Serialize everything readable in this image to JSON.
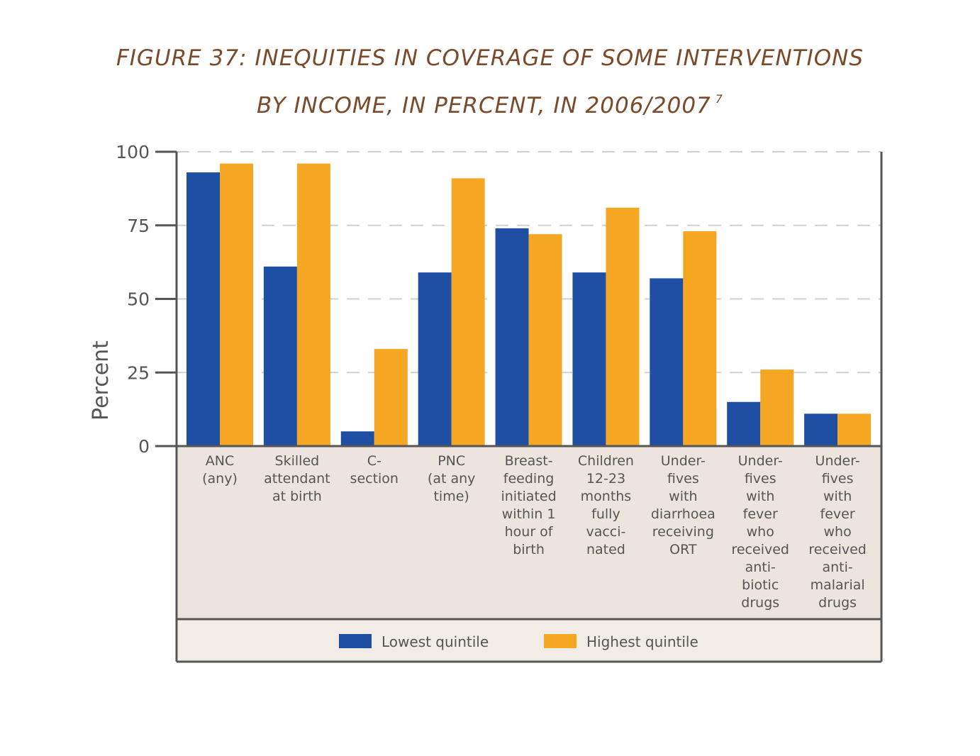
{
  "title": {
    "line1": "FIGURE 37: INEQUITIES IN COVERAGE OF SOME INTERVENTIONS",
    "line2": "BY INCOME, IN PERCENT, IN 2006/2007",
    "superscript": "7"
  },
  "chart_data": {
    "type": "bar",
    "title": "FIGURE 37: INEQUITIES IN COVERAGE OF SOME INTERVENTIONS BY INCOME, IN PERCENT, IN 2006/2007",
    "xlabel": "",
    "ylabel": "Percent",
    "ylim": [
      0,
      100
    ],
    "yticks": [
      "0",
      "25",
      "50",
      "75",
      "100"
    ],
    "grid": "horizontal dashed",
    "legend_position": "bottom",
    "categories": [
      [
        "ANC",
        "(any)"
      ],
      [
        "Skilled",
        "attendant",
        "at birth"
      ],
      [
        "C-",
        "section"
      ],
      [
        "PNC",
        "(at any",
        "time)"
      ],
      [
        "Breast-",
        "feeding",
        "initiated",
        "within 1",
        "hour of",
        "birth"
      ],
      [
        "Children",
        "12-23",
        "months",
        "fully",
        "vacci-",
        "nated"
      ],
      [
        "Under-",
        "fives",
        "with",
        "diarrhoea",
        "receiving",
        "ORT"
      ],
      [
        "Under-",
        "fives",
        "with",
        "fever",
        "who",
        "received",
        "anti-",
        "biotic",
        "drugs"
      ],
      [
        "Under-",
        "fives",
        "with",
        "fever",
        "who",
        "received",
        "anti-",
        "malarial",
        "drugs"
      ]
    ],
    "series": [
      {
        "name": "Lowest quintile",
        "color": "#1e4fa3",
        "values": [
          93,
          61,
          5,
          59,
          74,
          59,
          57,
          15,
          11
        ]
      },
      {
        "name": "Highest quintile",
        "color": "#f5a623",
        "values": [
          96,
          96,
          33,
          91,
          72,
          81,
          73,
          26,
          11
        ]
      }
    ]
  }
}
